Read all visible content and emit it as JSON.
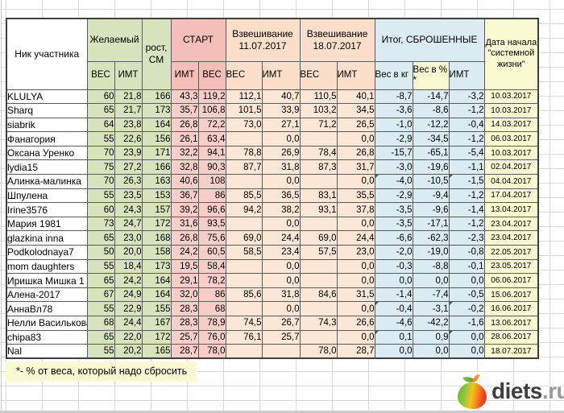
{
  "colors": {
    "green": "#d7e3bc",
    "pink_header": "#f5bfb9",
    "pink": "#f8cec9",
    "peach_header": "#fbdfca",
    "peach": "#fce6d5",
    "blue": "#daebf1",
    "yellow": "#fafad2",
    "grid": "#d9d9d9"
  },
  "table": {
    "header": {
      "nickname": "Ник участника",
      "desired_group": "Желаемый",
      "height_line1": "рост,",
      "height_line2": "СМ",
      "start_group": "СТАРТ",
      "weighin1_line1": "Взвешивание",
      "weighin1_line2": "11.07.2017",
      "weighin2_line1": "Взвешивание",
      "weighin2_line2": "18.07.2017",
      "total_group": "Итог, СБРОШЕННЫЕ",
      "date_line1": "Дата начала",
      "date_line2": "\"системной",
      "date_line3": "жизни\"",
      "sub_ves": "ВЕС",
      "sub_imt": "ИМТ",
      "sub_kg": "Вес в кг",
      "sub_pct_line1": "Вес в %",
      "sub_pct_line2": "*"
    },
    "rows": [
      {
        "name": "KLULYA",
        "dves": "60",
        "dimt": "21,8",
        "rost": "166",
        "simt": "43,3",
        "sves": "119,2",
        "v1": "112,1",
        "i1": "40,7",
        "v2": "110,5",
        "i2": "40,1",
        "kg": "-8,7",
        "pct": "-14,7",
        "timt": "-3,2",
        "date": "10.03.2017",
        "tri": false
      },
      {
        "name": "Sharq",
        "dves": "65",
        "dimt": "21,7",
        "rost": "173",
        "simt": "35,7",
        "sves": "106,8",
        "v1": "101,5",
        "i1": "33,9",
        "v2": "103,2",
        "i2": "34,5",
        "kg": "-3,6",
        "pct": "-8,6",
        "timt": "-1,2",
        "date": "10.03.2017",
        "tri": false
      },
      {
        "name": "siabrik",
        "dves": "64",
        "dimt": "23,8",
        "rost": "164",
        "simt": "26,8",
        "sves": "72,2",
        "v1": "73,0",
        "i1": "27,1",
        "v2": "71,2",
        "i2": "26,5",
        "kg": "-1,0",
        "pct": "-12,2",
        "timt": "-0,4",
        "date": "14.03.2017",
        "tri": false
      },
      {
        "name": "Фанагория",
        "dves": "55",
        "dimt": "22,6",
        "rost": "156",
        "simt": "26,1",
        "sves": "63,4",
        "v1": "",
        "i1": "0,0",
        "v2": "",
        "i2": "0,0",
        "kg": "-2,9",
        "pct": "-34,5",
        "timt": "-1,2",
        "date": "06.03.2017",
        "tri": false
      },
      {
        "name": "Оксана Уренко",
        "dves": "70",
        "dimt": "23,9",
        "rost": "171",
        "simt": "32,2",
        "sves": "94,1",
        "v1": "78,8",
        "i1": "26,9",
        "v2": "78,4",
        "i2": "26,8",
        "kg": "-15,7",
        "pct": "-65,1",
        "timt": "-5,4",
        "date": "10.03.2017",
        "tri": false
      },
      {
        "name": "lydia15",
        "dves": "75",
        "dimt": "27,2",
        "rost": "166",
        "simt": "32,8",
        "sves": "90,3",
        "v1": "87,7",
        "i1": "31,8",
        "v2": "87,3",
        "i2": "31,7",
        "kg": "-3,0",
        "pct": "-19,6",
        "timt": "-1,1",
        "date": "02.04.2017",
        "tri": false
      },
      {
        "name": "Алинка-малинка",
        "dves": "70",
        "dimt": "26,3",
        "rost": "163",
        "simt": "40,6",
        "sves": "108",
        "v1": "",
        "i1": "0,0",
        "v2": "",
        "i2": "0,0",
        "kg": "-4,0",
        "pct": "-10,5",
        "timt": "-1,5",
        "date": "04.04.2017",
        "tri": true
      },
      {
        "name": "Шпулена",
        "dves": "55",
        "dimt": "23,5",
        "rost": "153",
        "simt": "36,7",
        "sves": "86",
        "v1": "85,5",
        "i1": "36,5",
        "v2": "83,1",
        "i2": "35,5",
        "kg": "-2,9",
        "pct": "-9,4",
        "timt": "-1,2",
        "date": "17.04.2017",
        "tri": false
      },
      {
        "name": "Irine3576",
        "dves": "60",
        "dimt": "24,3",
        "rost": "157",
        "simt": "39,2",
        "sves": "96,6",
        "v1": "94,2",
        "i1": "38,2",
        "v2": "93,1",
        "i2": "37,8",
        "kg": "-3,5",
        "pct": "-9,6",
        "timt": "-1,4",
        "date": "13.04.2017",
        "tri": false
      },
      {
        "name": "Мария 1981",
        "dves": "73",
        "dimt": "24,7",
        "rost": "172",
        "simt": "31,6",
        "sves": "93,5",
        "v1": "",
        "i1": "0,0",
        "v2": "",
        "i2": "0,0",
        "kg": "-3,5",
        "pct": "-17,1",
        "timt": "-1,2",
        "date": "23.04.2017",
        "tri": false
      },
      {
        "name": "glazkina inna",
        "dves": "65",
        "dimt": "23,0",
        "rost": "168",
        "simt": "26,8",
        "sves": "75,6",
        "v1": "69,0",
        "i1": "24,4",
        "v2": "69,0",
        "i2": "24,4",
        "kg": "-6,6",
        "pct": "-62,3",
        "timt": "-2,3",
        "date": "23.04.2017",
        "tri": false
      },
      {
        "name": "Podkolodnaya7",
        "dves": "50",
        "dimt": "20,0",
        "rost": "158",
        "simt": "24,2",
        "sves": "60,5",
        "v1": "58,5",
        "i1": "23,4",
        "v2": "57,5",
        "i2": "23,0",
        "kg": "-2,0",
        "pct": "-19,0",
        "timt": "-0,8",
        "date": "22.05.2017",
        "tri": false
      },
      {
        "name": "mom daughters",
        "dves": "55",
        "dimt": "18,4",
        "rost": "173",
        "simt": "19,5",
        "sves": "58,4",
        "v1": "",
        "i1": "0,0",
        "v2": "",
        "i2": "0,0",
        "kg": "-0,3",
        "pct": "-8,8",
        "timt": "-0,1",
        "date": "23.05.2017",
        "tri": false
      },
      {
        "name": "Иришка Мишка 1",
        "dves": "65",
        "dimt": "24,2",
        "rost": "164",
        "simt": "29,1",
        "sves": "78,2",
        "v1": "",
        "i1": "0,0",
        "v2": "",
        "i2": "0,0",
        "kg": "0,0",
        "pct": "0,0",
        "timt": "0,0",
        "date": "06.06.2017",
        "tri": false
      },
      {
        "name": "Алена-2017",
        "dves": "67",
        "dimt": "24,9",
        "rost": "164",
        "simt": "32,0",
        "sves": "86",
        "v1": "85,6",
        "i1": "31,8",
        "v2": "84,6",
        "i2": "31,5",
        "kg": "-1,4",
        "pct": "-7,4",
        "timt": "-0,5",
        "date": "15.06.2017",
        "tri": false
      },
      {
        "name": "АннаВл78",
        "dves": "55",
        "dimt": "22,9",
        "rost": "155",
        "simt": "28,3",
        "sves": "68",
        "v1": "",
        "i1": "0,0",
        "v2": "",
        "i2": "0,0",
        "kg": "-0,4",
        "pct": "-3,1",
        "timt": "-0,2",
        "date": "16.06.2017",
        "tri": true
      },
      {
        "name": "Нелли Василькова",
        "dves": "68",
        "dimt": "24,4",
        "rost": "167",
        "simt": "28,3",
        "sves": "78,9",
        "v1": "74,5",
        "i1": "26,7",
        "v2": "74,3",
        "i2": "26,6",
        "kg": "-4,6",
        "pct": "-42,2",
        "timt": "-1,6",
        "date": "13.06.2017",
        "tri": false
      },
      {
        "name": "chipa83",
        "dves": "65",
        "dimt": "22,0",
        "rost": "172",
        "simt": "25,7",
        "sves": "76,0",
        "v1": "76,1",
        "i1": "25,7",
        "v2": "",
        "i2": "0,0",
        "kg": "0,1",
        "pct": "0,9",
        "timt": "0,0",
        "date": "28.06.2017",
        "tri": true
      },
      {
        "name": "Nal",
        "dves": "55",
        "dimt": "20,2",
        "rost": "165",
        "simt": "28,7",
        "sves": "78,0",
        "v1": "",
        "i1": "",
        "v2": "78,0",
        "i2": "28,7",
        "kg": "0,0",
        "pct": "0,0",
        "timt": "0,0",
        "date": "18.07.2017",
        "tri": false
      }
    ]
  },
  "footnote": "*- % от веса, который надо сбросить",
  "logo": {
    "main": "diets",
    "suffix": ".ru"
  }
}
